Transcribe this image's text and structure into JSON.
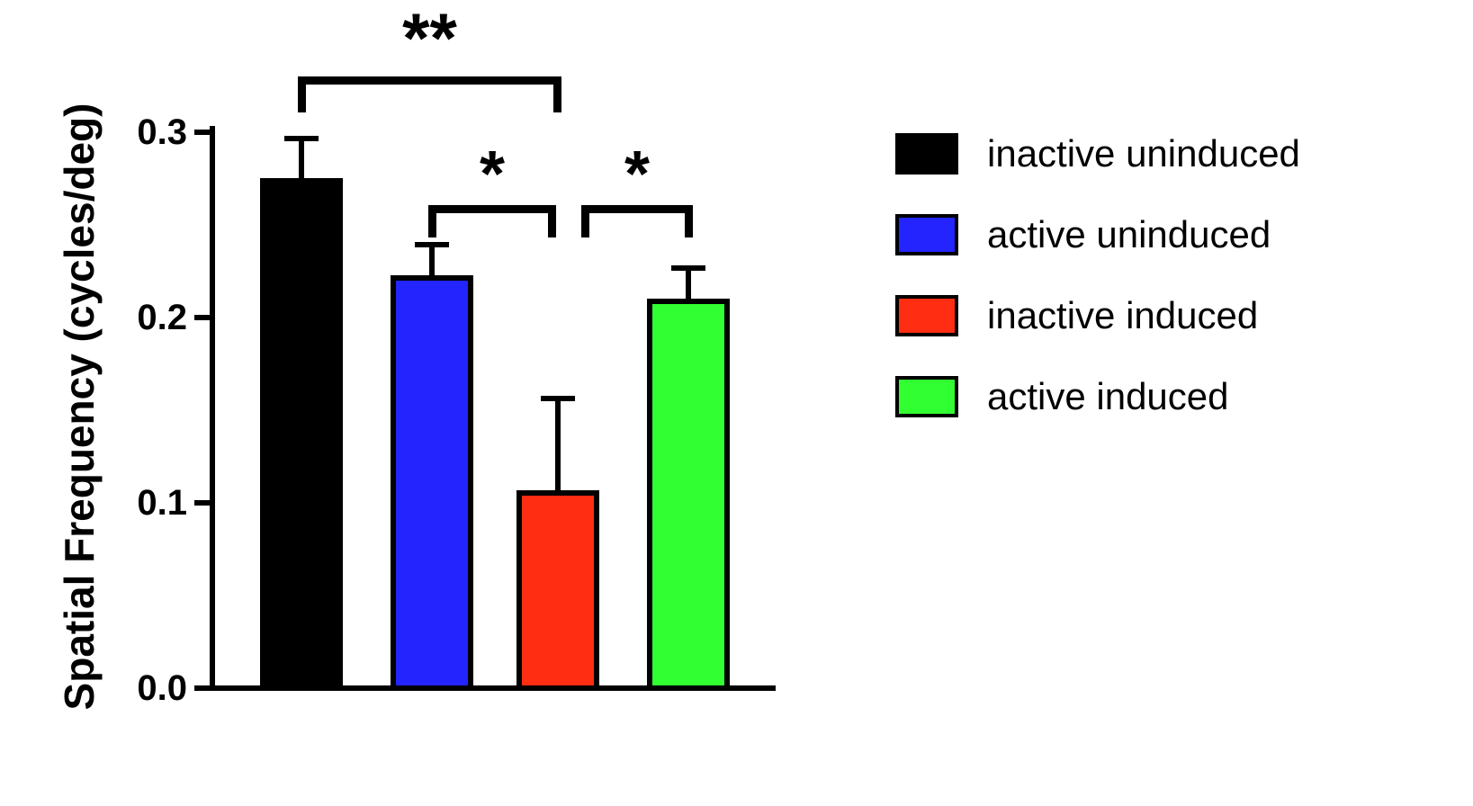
{
  "chart_data": {
    "type": "bar",
    "title": "",
    "xlabel": "",
    "ylabel": "Spatial Frequency (cycles/deg)",
    "ylim": [
      0,
      0.3
    ],
    "yticks": [
      0.0,
      0.1,
      0.2,
      0.3
    ],
    "ytick_labels": [
      "0.0",
      "0.1",
      "0.2",
      "0.3"
    ],
    "grid": false,
    "legend_position": "right",
    "categories": [
      "inactive uninduced",
      "active uninduced",
      "inactive induced",
      "active induced"
    ],
    "values": [
      0.275,
      0.223,
      0.107,
      0.21
    ],
    "errors": [
      0.022,
      0.017,
      0.05,
      0.017
    ],
    "colors": [
      "#000000",
      "#2424ff",
      "#ff2d11",
      "#32ff32"
    ],
    "legend": [
      {
        "label": "inactive uninduced",
        "color": "#000000"
      },
      {
        "label": "active uninduced",
        "color": "#2424ff"
      },
      {
        "label": "inactive induced",
        "color": "#ff2d11"
      },
      {
        "label": "active induced",
        "color": "#32ff32"
      }
    ],
    "significance": [
      {
        "from": 0,
        "to": 2,
        "label": "**"
      },
      {
        "from": 1,
        "to": 2,
        "label": "*"
      },
      {
        "from": 2,
        "to": 3,
        "label": "*"
      }
    ]
  }
}
